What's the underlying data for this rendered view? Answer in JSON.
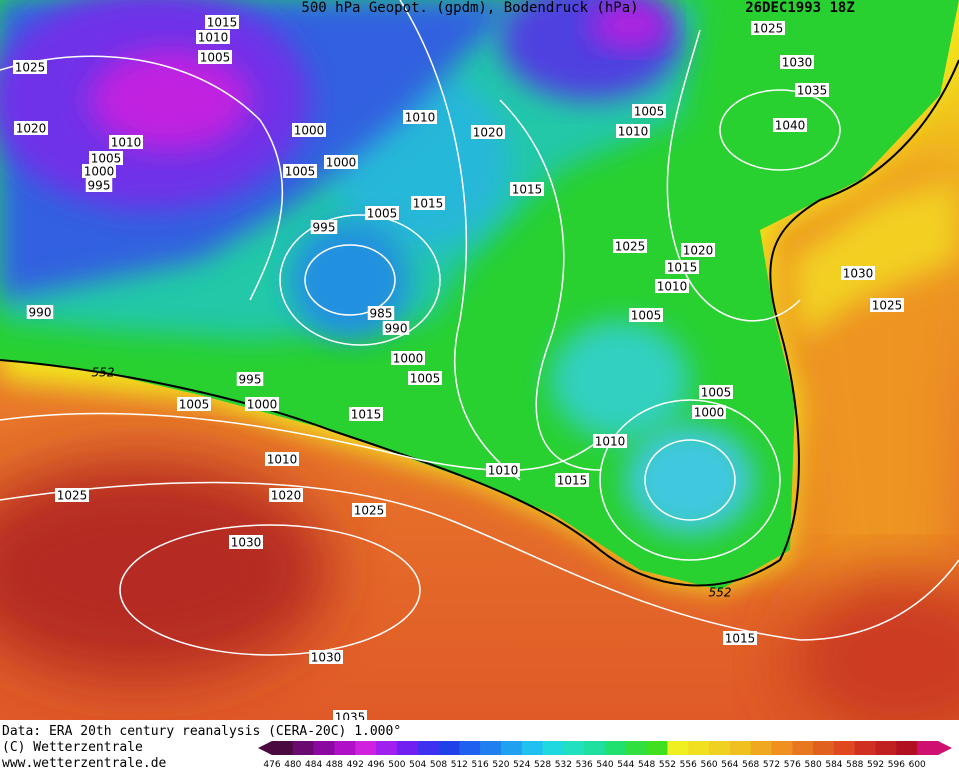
{
  "header": {
    "title": "500 hPa Geopot. (gpdm), Bodendruck (hPa)",
    "date": "26DEC1993 18Z"
  },
  "isobar_labels": [
    "1015",
    "1010",
    "1005",
    "1025",
    "1020",
    "1010",
    "1005",
    "1000",
    "995",
    "1000",
    "1005",
    "1000",
    "1010",
    "1020",
    "1015",
    "1015",
    "1005",
    "995",
    "985",
    "990",
    "990",
    "552",
    "995",
    "1000",
    "1005",
    "1005",
    "1000",
    "1015",
    "1010",
    "1010",
    "1015",
    "1020",
    "1025",
    "1025",
    "1030",
    "1030",
    "1035",
    "1025",
    "1030",
    "1035",
    "1040",
    "1005",
    "1010",
    "1025",
    "1020",
    "1015",
    "1010",
    "1005",
    "1030",
    "1025",
    "1005",
    "1000",
    "1010",
    "552",
    "1015"
  ],
  "footer": {
    "data_source": "Data: ERA 20th century reanalysis (CERA-20C) 1.000°",
    "copyright": "(C) Wetterzentrale",
    "url": "www.wetterzentrale.de"
  },
  "colorbar_labels": [
    "476",
    "480",
    "484",
    "488",
    "492",
    "496",
    "500",
    "504",
    "508",
    "512",
    "516",
    "520",
    "524",
    "528",
    "532",
    "536",
    "540",
    "544",
    "548",
    "552",
    "556",
    "560",
    "564",
    "568",
    "572",
    "576",
    "580",
    "584",
    "588",
    "592",
    "596",
    "600"
  ]
}
